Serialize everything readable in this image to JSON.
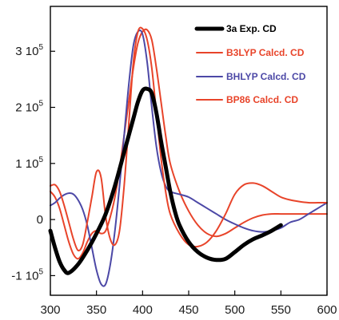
{
  "chart_data": {
    "type": "line",
    "title": "",
    "xlabel": "",
    "ylabel": "",
    "xlim": [
      300,
      600
    ],
    "ylim": [
      -135000,
      380000
    ],
    "grid": false,
    "legend_position": "top-right",
    "x_ticks": [
      300,
      350,
      400,
      450,
      500,
      550,
      600
    ],
    "x_tick_labels": [
      "300",
      "350",
      "400",
      "450",
      "500",
      "550",
      "600"
    ],
    "y_ticks": [
      -100000,
      0,
      100000,
      200000,
      300000
    ],
    "y_tick_labels": [
      {
        "base": "-1 10",
        "exp": "5"
      },
      {
        "base": "0",
        "exp": ""
      },
      {
        "base": "1 10",
        "exp": "5"
      },
      {
        "base": "2 10",
        "exp": "5"
      },
      {
        "base": "3 10",
        "exp": "5"
      }
    ],
    "series": [
      {
        "name": "3a Exp. CD",
        "color": "#000000",
        "width": "thick",
        "x": [
          300,
          305,
          310,
          315,
          320,
          330,
          340,
          350,
          360,
          370,
          380,
          390,
          395,
          400,
          405,
          410,
          415,
          420,
          425,
          430,
          435,
          440,
          450,
          460,
          470,
          480,
          490,
          500,
          510,
          520,
          530,
          540,
          550
        ],
        "y": [
          -20000,
          -50000,
          -75000,
          -90000,
          -95000,
          -80000,
          -55000,
          -25000,
          10000,
          60000,
          120000,
          180000,
          210000,
          230000,
          233000,
          225000,
          190000,
          140000,
          95000,
          50000,
          15000,
          -10000,
          -40000,
          -58000,
          -68000,
          -72000,
          -70000,
          -58000,
          -45000,
          -35000,
          -28000,
          -20000,
          -10000
        ]
      },
      {
        "name": "B3LYP Calcd. CD",
        "color": "#e8442a",
        "width": "thin",
        "x": [
          300,
          305,
          310,
          315,
          320,
          325,
          330,
          335,
          340,
          345,
          350,
          355,
          360,
          365,
          370,
          375,
          380,
          385,
          390,
          395,
          400,
          405,
          410,
          415,
          420,
          425,
          430,
          440,
          450,
          460,
          470,
          480,
          490,
          500,
          510,
          520,
          530,
          540,
          550,
          560,
          570,
          580,
          590,
          600
        ],
        "y": [
          50000,
          40000,
          20000,
          -10000,
          -40000,
          -62000,
          -70000,
          -60000,
          -40000,
          -25000,
          -20000,
          -25000,
          -20000,
          5000,
          40000,
          90000,
          150000,
          210000,
          270000,
          315000,
          335000,
          338000,
          320000,
          270000,
          210000,
          150000,
          100000,
          50000,
          15000,
          -10000,
          -25000,
          -30000,
          -25000,
          -15000,
          -5000,
          3000,
          8000,
          10000,
          10000,
          10000,
          10000,
          10000,
          10000,
          10000
        ]
      },
      {
        "name": "BHLYP Calcd. CD",
        "color": "#4c48a6",
        "width": "thin",
        "x": [
          300,
          305,
          310,
          315,
          320,
          325,
          330,
          335,
          340,
          345,
          350,
          355,
          360,
          365,
          370,
          375,
          380,
          385,
          390,
          395,
          400,
          405,
          410,
          415,
          420,
          425,
          430,
          440,
          450,
          460,
          470,
          480,
          490,
          500,
          510,
          520,
          530,
          540,
          550,
          560,
          570,
          580,
          590,
          600
        ],
        "y": [
          25000,
          30000,
          38000,
          44000,
          47000,
          45000,
          35000,
          18000,
          -10000,
          -50000,
          -90000,
          -115000,
          -115000,
          -80000,
          -20000,
          60000,
          150000,
          240000,
          310000,
          335000,
          330000,
          280000,
          200000,
          130000,
          85000,
          60000,
          50000,
          45000,
          40000,
          30000,
          20000,
          10000,
          0,
          -8000,
          -15000,
          -20000,
          -22000,
          -20000,
          -15000,
          -5000,
          0,
          10000,
          20000,
          30000
        ]
      },
      {
        "name": "BP86 Calcd. CD",
        "color": "#e8442a",
        "width": "thin",
        "x": [
          300,
          305,
          310,
          315,
          320,
          325,
          330,
          335,
          340,
          345,
          350,
          355,
          360,
          365,
          370,
          375,
          380,
          385,
          390,
          395,
          400,
          405,
          410,
          415,
          420,
          425,
          430,
          440,
          450,
          460,
          470,
          480,
          490,
          500,
          510,
          520,
          530,
          540,
          550,
          560,
          570,
          580,
          590,
          600
        ],
        "y": [
          60000,
          62000,
          50000,
          25000,
          -5000,
          -35000,
          -55000,
          -45000,
          -5000,
          40000,
          85000,
          75000,
          5000,
          -35000,
          -45000,
          -20000,
          60000,
          170000,
          280000,
          335000,
          340000,
          320000,
          270000,
          190000,
          110000,
          50000,
          10000,
          -25000,
          -45000,
          -48000,
          -40000,
          -20000,
          10000,
          45000,
          62000,
          65000,
          60000,
          50000,
          40000,
          35000,
          32000,
          30000,
          30000,
          30000
        ]
      }
    ]
  }
}
